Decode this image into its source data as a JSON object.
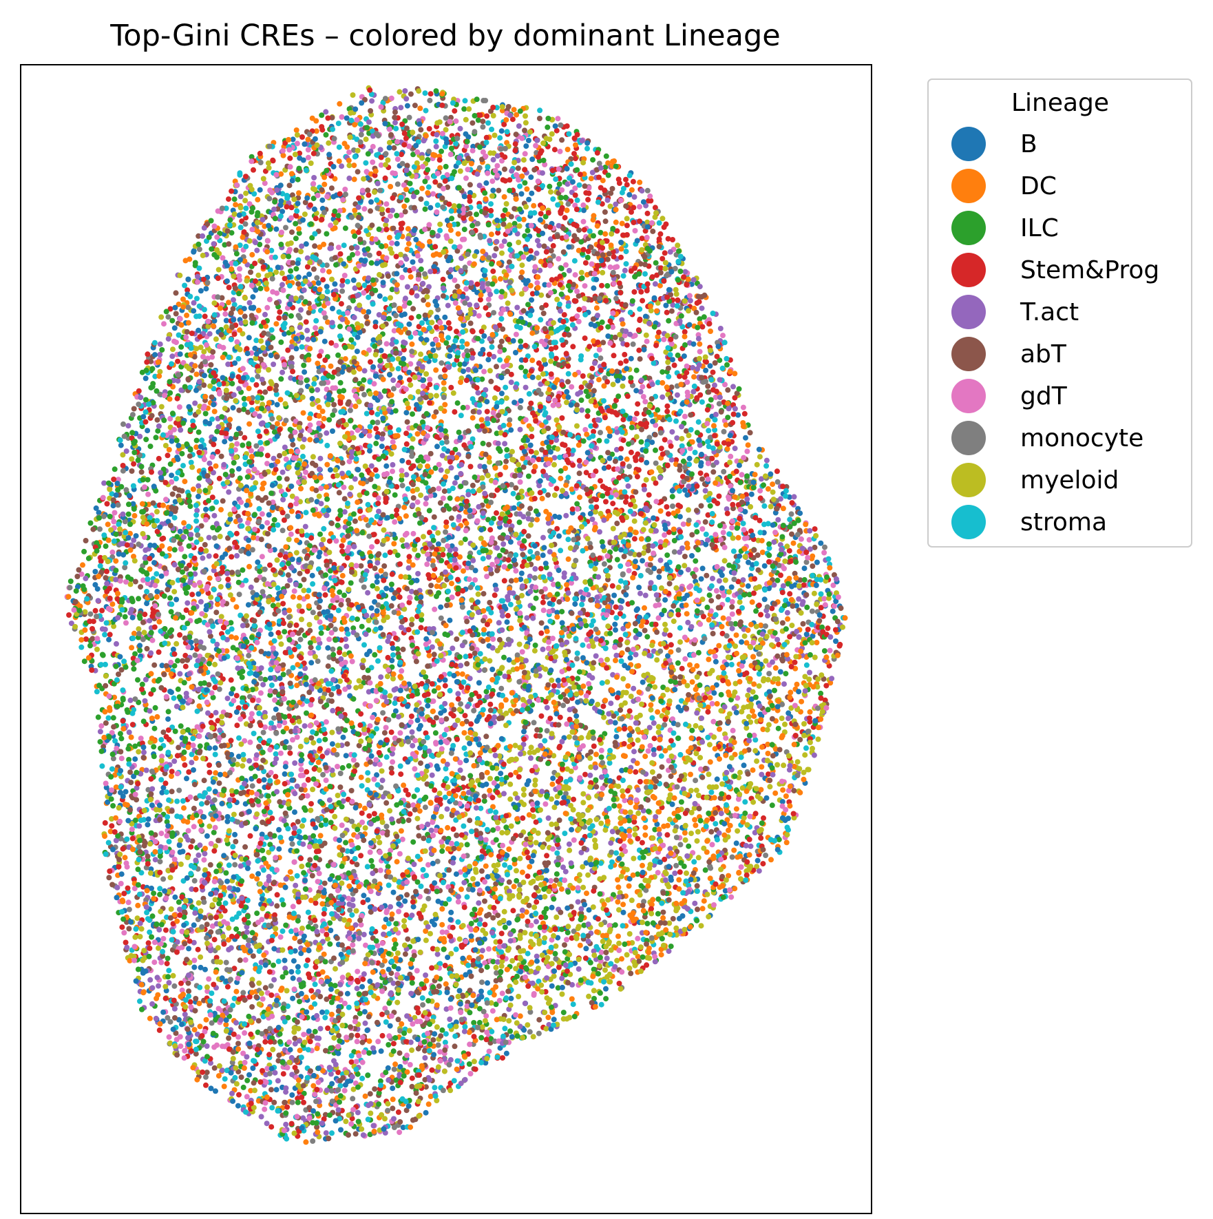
{
  "chart_data": {
    "type": "scatter",
    "title": "Top-Gini CREs – colored by dominant Lineage",
    "xlabel": "",
    "ylabel": "",
    "axis_ticks": "none",
    "grid": false,
    "legend": {
      "title": "Lineage",
      "placement": "outside-upper-right",
      "entries": [
        {
          "name": "B",
          "color": "#1f77b4"
        },
        {
          "name": "DC",
          "color": "#ff7f0e"
        },
        {
          "name": "ILC",
          "color": "#2ca02c"
        },
        {
          "name": "Stem&Prog",
          "color": "#d62728"
        },
        {
          "name": "T.act",
          "color": "#9467bd"
        },
        {
          "name": "abT",
          "color": "#8c564b"
        },
        {
          "name": "gdT",
          "color": "#e377c2"
        },
        {
          "name": "monocyte",
          "color": "#7f7f7f"
        },
        {
          "name": "myeloid",
          "color": "#bcbd22"
        },
        {
          "name": "stroma",
          "color": "#17becf"
        }
      ]
    },
    "xlim": [
      0,
      1
    ],
    "ylim": [
      0,
      1
    ],
    "point_cloud_outline": [
      [
        0.27,
        0.92
      ],
      [
        0.4,
        0.98
      ],
      [
        0.47,
        0.98
      ],
      [
        0.62,
        0.96
      ],
      [
        0.73,
        0.9
      ],
      [
        0.82,
        0.78
      ],
      [
        0.86,
        0.68
      ],
      [
        0.95,
        0.58
      ],
      [
        0.97,
        0.52
      ],
      [
        0.95,
        0.44
      ],
      [
        0.9,
        0.32
      ],
      [
        0.8,
        0.25
      ],
      [
        0.68,
        0.18
      ],
      [
        0.53,
        0.12
      ],
      [
        0.45,
        0.07
      ],
      [
        0.32,
        0.06
      ],
      [
        0.2,
        0.12
      ],
      [
        0.14,
        0.18
      ],
      [
        0.1,
        0.3
      ],
      [
        0.09,
        0.45
      ],
      [
        0.05,
        0.53
      ],
      [
        0.08,
        0.6
      ],
      [
        0.14,
        0.73
      ],
      [
        0.19,
        0.83
      ]
    ],
    "density_hints": [
      {
        "series": "DC",
        "region": [
          0.7,
          0.95
        ],
        "bias": [
          0.2,
          0.5
        ],
        "weight": 2.5
      },
      {
        "series": "myeloid",
        "region": [
          0.55,
          0.95
        ],
        "bias": [
          0.15,
          0.5
        ],
        "weight": 2.5
      },
      {
        "series": "Stem&Prog",
        "region": [
          0.6,
          0.85
        ],
        "bias": [
          0.6,
          0.95
        ],
        "weight": 2.0
      },
      {
        "series": "ILC",
        "region": [
          0.05,
          0.2
        ],
        "bias": [
          0.4,
          0.75
        ],
        "weight": 2.0
      }
    ],
    "n_points": 16000
  }
}
